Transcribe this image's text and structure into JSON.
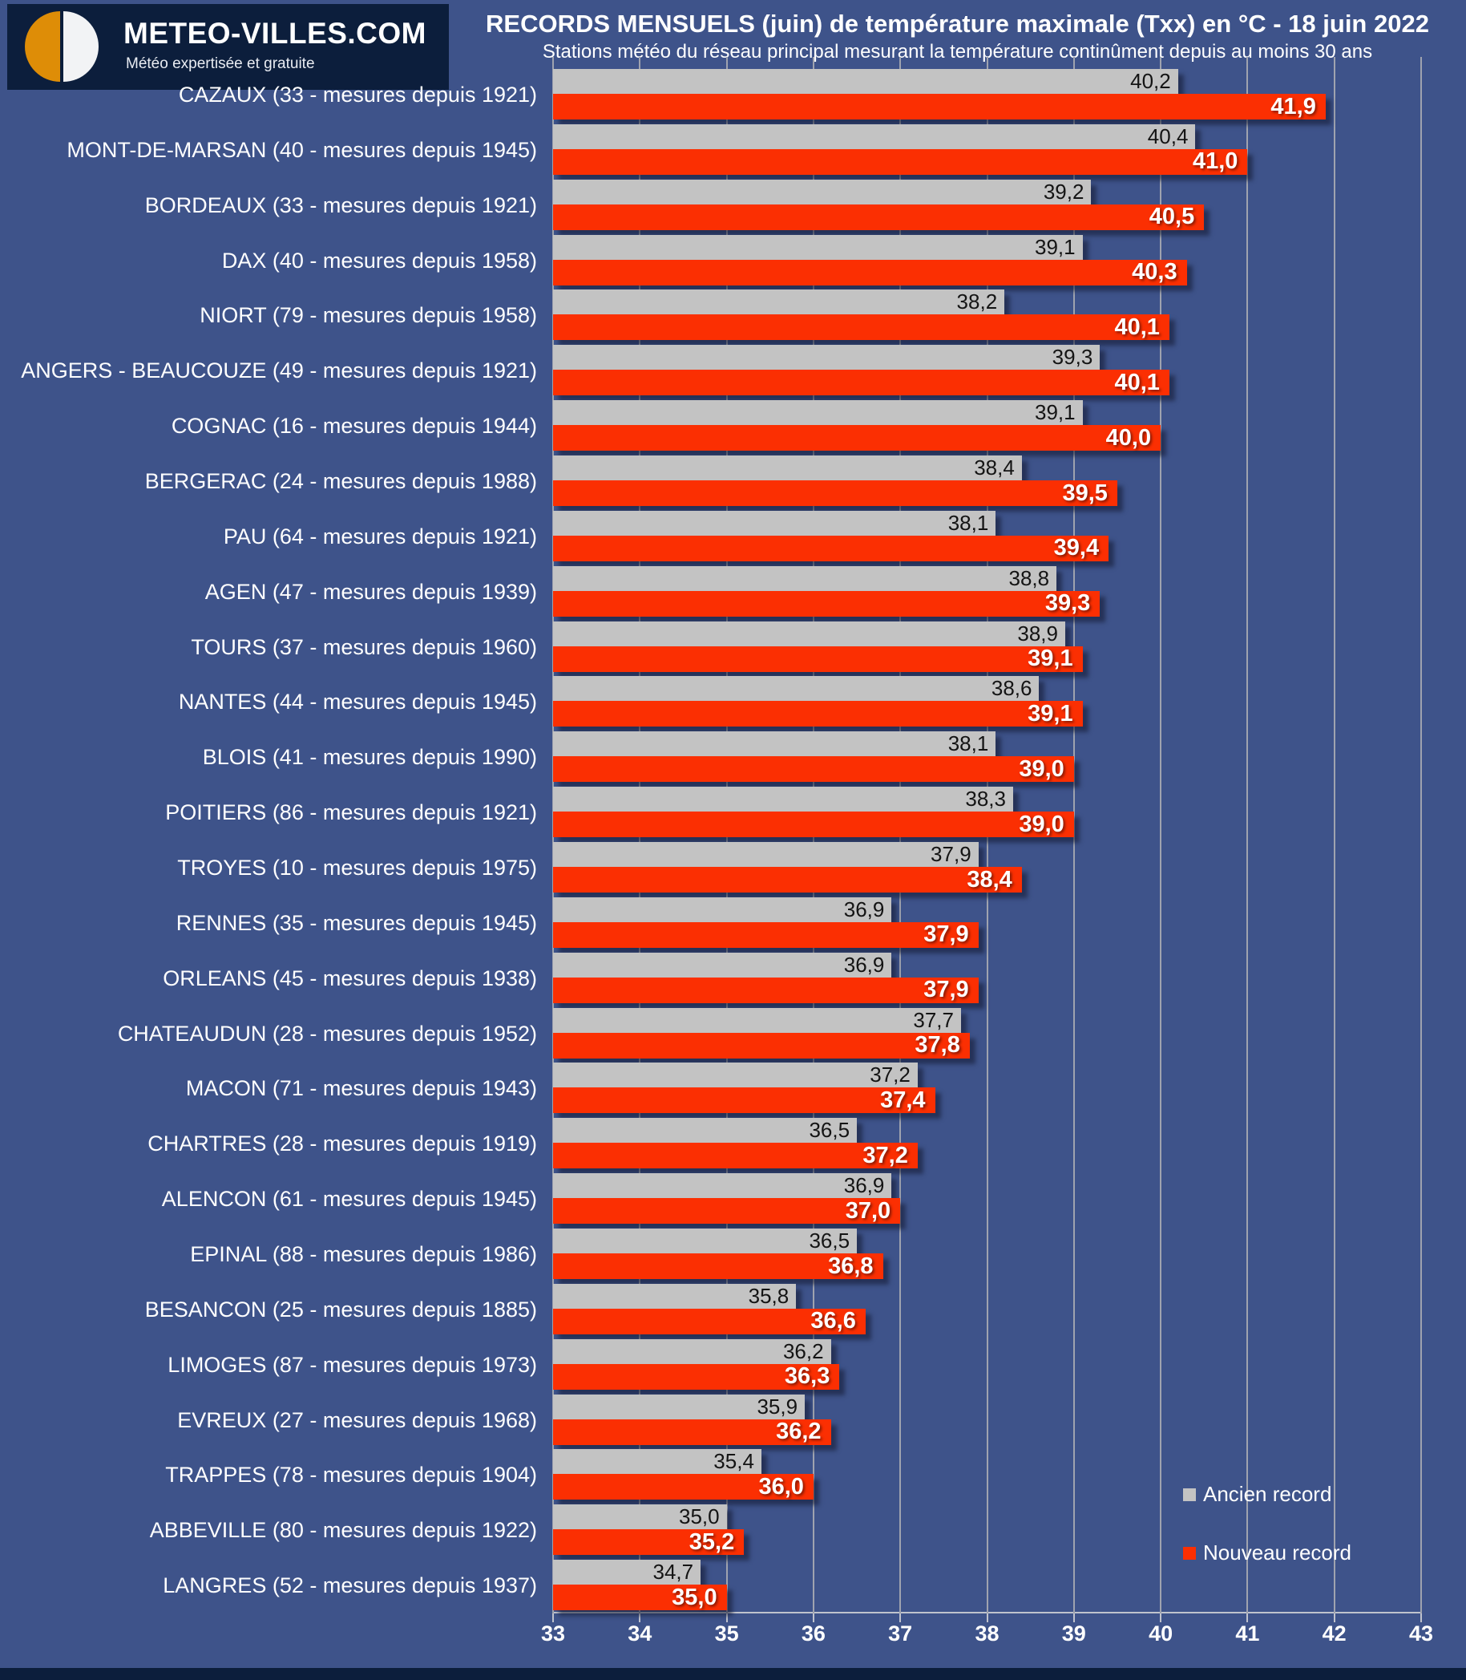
{
  "header": {
    "brand": "METEO-VILLES.COM",
    "tagline": "Météo expertisée et gratuite",
    "title": "RECORDS MENSUELS (juin) de température maximale (Txx) en °C - 18 juin 2022",
    "subtitle": "Stations météo du réseau principal mesurant la température continûment depuis au moins 30 ans"
  },
  "legend": {
    "old_label": "Ancien record",
    "new_label": "Nouveau record"
  },
  "colors": {
    "background": "#3E538A",
    "old_record_bar": "#C3C3C3",
    "new_record_bar": "#FB2F02",
    "logo_box": "#0C1E3C",
    "logo_orange": "#DE8D07",
    "text": "#FFFFFF"
  },
  "chart_data": {
    "type": "bar",
    "orientation": "horizontal",
    "title": "RECORDS MENSUELS (juin) de température maximale (Txx) en °C - 18 juin 2022",
    "subtitle": "Stations météo du réseau principal mesurant la température continûment depuis au moins 30 ans",
    "xlim": [
      33,
      43
    ],
    "x_ticks": [
      "33",
      "34",
      "35",
      "36",
      "37",
      "38",
      "39",
      "40",
      "41",
      "42",
      "43"
    ],
    "grid": true,
    "legend_position": "inside-bottom-right",
    "series": [
      {
        "name": "Ancien record",
        "color": "#C3C3C3"
      },
      {
        "name": "Nouveau record",
        "color": "#FB2F02"
      }
    ],
    "stations": [
      {
        "label": "CAZAUX (33 - mesures depuis 1921)",
        "ancien": 40.2,
        "nouveau": 41.9,
        "ancien_text": "40,2",
        "nouveau_text": "41,9"
      },
      {
        "label": "MONT-DE-MARSAN (40 - mesures depuis 1945)",
        "ancien": 40.4,
        "nouveau": 41.0,
        "ancien_text": "40,4",
        "nouveau_text": "41,0"
      },
      {
        "label": "BORDEAUX (33 - mesures depuis 1921)",
        "ancien": 39.2,
        "nouveau": 40.5,
        "ancien_text": "39,2",
        "nouveau_text": "40,5"
      },
      {
        "label": "DAX (40 - mesures depuis 1958)",
        "ancien": 39.1,
        "nouveau": 40.3,
        "ancien_text": "39,1",
        "nouveau_text": "40,3"
      },
      {
        "label": "NIORT (79 - mesures depuis 1958)",
        "ancien": 38.2,
        "nouveau": 40.1,
        "ancien_text": "38,2",
        "nouveau_text": "40,1"
      },
      {
        "label": "ANGERS - BEAUCOUZE (49 - mesures depuis 1921)",
        "ancien": 39.3,
        "nouveau": 40.1,
        "ancien_text": "39,3",
        "nouveau_text": "40,1"
      },
      {
        "label": "COGNAC (16 - mesures depuis 1944)",
        "ancien": 39.1,
        "nouveau": 40.0,
        "ancien_text": "39,1",
        "nouveau_text": "40,0"
      },
      {
        "label": "BERGERAC (24 - mesures depuis 1988)",
        "ancien": 38.4,
        "nouveau": 39.5,
        "ancien_text": "38,4",
        "nouveau_text": "39,5"
      },
      {
        "label": "PAU (64 - mesures depuis 1921)",
        "ancien": 38.1,
        "nouveau": 39.4,
        "ancien_text": "38,1",
        "nouveau_text": "39,4"
      },
      {
        "label": "AGEN (47 - mesures depuis 1939)",
        "ancien": 38.8,
        "nouveau": 39.3,
        "ancien_text": "38,8",
        "nouveau_text": "39,3"
      },
      {
        "label": "TOURS (37 - mesures depuis 1960)",
        "ancien": 38.9,
        "nouveau": 39.1,
        "ancien_text": "38,9",
        "nouveau_text": "39,1"
      },
      {
        "label": "NANTES (44 - mesures depuis 1945)",
        "ancien": 38.6,
        "nouveau": 39.1,
        "ancien_text": "38,6",
        "nouveau_text": "39,1"
      },
      {
        "label": "BLOIS (41 - mesures depuis 1990)",
        "ancien": 38.1,
        "nouveau": 39.0,
        "ancien_text": "38,1",
        "nouveau_text": "39,0"
      },
      {
        "label": "POITIERS (86 - mesures depuis 1921)",
        "ancien": 38.3,
        "nouveau": 39.0,
        "ancien_text": "38,3",
        "nouveau_text": "39,0"
      },
      {
        "label": "TROYES (10 - mesures depuis 1975)",
        "ancien": 37.9,
        "nouveau": 38.4,
        "ancien_text": "37,9",
        "nouveau_text": "38,4"
      },
      {
        "label": "RENNES (35 - mesures depuis 1945)",
        "ancien": 36.9,
        "nouveau": 37.9,
        "ancien_text": "36,9",
        "nouveau_text": "37,9"
      },
      {
        "label": "ORLEANS (45 - mesures depuis 1938)",
        "ancien": 36.9,
        "nouveau": 37.9,
        "ancien_text": "36,9",
        "nouveau_text": "37,9"
      },
      {
        "label": "CHATEAUDUN (28 - mesures depuis 1952)",
        "ancien": 37.7,
        "nouveau": 37.8,
        "ancien_text": "37,7",
        "nouveau_text": "37,8"
      },
      {
        "label": "MACON (71 - mesures depuis 1943)",
        "ancien": 37.2,
        "nouveau": 37.4,
        "ancien_text": "37,2",
        "nouveau_text": "37,4"
      },
      {
        "label": "CHARTRES (28 - mesures depuis 1919)",
        "ancien": 36.5,
        "nouveau": 37.2,
        "ancien_text": "36,5",
        "nouveau_text": "37,2"
      },
      {
        "label": "ALENCON (61 - mesures depuis 1945)",
        "ancien": 36.9,
        "nouveau": 37.0,
        "ancien_text": "36,9",
        "nouveau_text": "37,0"
      },
      {
        "label": "EPINAL (88 - mesures depuis 1986)",
        "ancien": 36.5,
        "nouveau": 36.8,
        "ancien_text": "36,5",
        "nouveau_text": "36,8"
      },
      {
        "label": "BESANCON (25 - mesures depuis 1885)",
        "ancien": 35.8,
        "nouveau": 36.6,
        "ancien_text": "35,8",
        "nouveau_text": "36,6"
      },
      {
        "label": "LIMOGES (87 - mesures depuis 1973)",
        "ancien": 36.2,
        "nouveau": 36.3,
        "ancien_text": "36,2",
        "nouveau_text": "36,3"
      },
      {
        "label": "EVREUX (27 - mesures depuis 1968)",
        "ancien": 35.9,
        "nouveau": 36.2,
        "ancien_text": "35,9",
        "nouveau_text": "36,2"
      },
      {
        "label": "TRAPPES (78 - mesures depuis 1904)",
        "ancien": 35.4,
        "nouveau": 36.0,
        "ancien_text": "35,4",
        "nouveau_text": "36,0"
      },
      {
        "label": "ABBEVILLE (80 - mesures depuis 1922)",
        "ancien": 35.0,
        "nouveau": 35.2,
        "ancien_text": "35,0",
        "nouveau_text": "35,2"
      },
      {
        "label": "LANGRES (52 - mesures depuis 1937)",
        "ancien": 34.7,
        "nouveau": 35.0,
        "ancien_text": "34,7",
        "nouveau_text": "35,0"
      }
    ]
  }
}
